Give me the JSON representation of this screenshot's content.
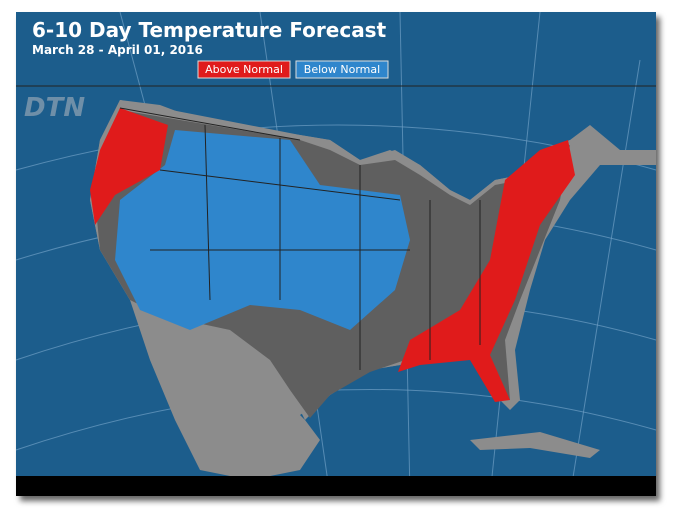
{
  "header": {
    "title": "6-10 Day Temperature Forecast",
    "subtitle": "March 28 - April 01, 2016",
    "logo": "DTN"
  },
  "legend": [
    {
      "label": "Above Normal",
      "color": "#e01b1b"
    },
    {
      "label": "Below Normal",
      "color": "#2f86cc"
    }
  ]
}
